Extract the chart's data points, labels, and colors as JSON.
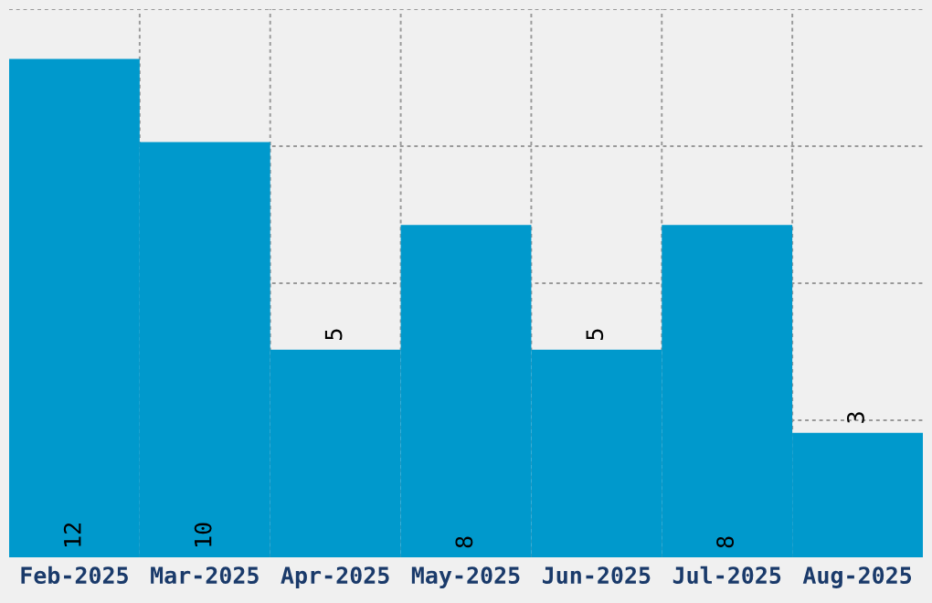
{
  "chart_data": {
    "type": "bar",
    "categories": [
      "Feb-2025",
      "Mar-2025",
      "Apr-2025",
      "May-2025",
      "Jun-2025",
      "Jul-2025",
      "Aug-2025"
    ],
    "values": [
      12,
      10,
      5,
      8,
      5,
      8,
      3
    ],
    "color": "#0099cc",
    "data_labels": true,
    "grid": true,
    "tick_labels": "x",
    "ylim": [
      0,
      13.2
    ],
    "yticks": [
      {
        "value": 3.3,
        "label": null
      },
      {
        "value": 6.6,
        "label": null
      },
      {
        "value": 9.9,
        "label": null
      },
      {
        "value": 13.2,
        "label": null
      }
    ]
  }
}
